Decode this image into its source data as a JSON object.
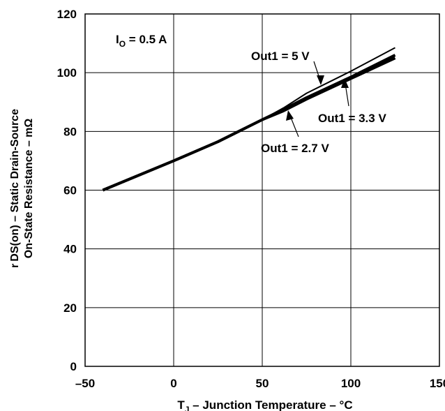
{
  "chart_data": {
    "type": "line",
    "title": "",
    "xlabel": {
      "prefix": "T",
      "sub": "J",
      "text": " – Junction Temperature – °C"
    },
    "ylabel": {
      "line1_prefix": "r",
      "line1_sub": "DS(on)",
      "line1_text": " – Static Drain-Source",
      "line2": "On-State Resistance –  mΩ"
    },
    "xlim": [
      -50,
      150
    ],
    "ylim": [
      0,
      120
    ],
    "xticks": [
      "–50",
      "0",
      "50",
      "100",
      "150"
    ],
    "yticks": [
      "0",
      "20",
      "40",
      "60",
      "80",
      "100",
      "120"
    ],
    "grid": true,
    "condition": {
      "prefix": "I",
      "sub": "O",
      "text": " = 0.5 A"
    },
    "series": [
      {
        "name": "Out1 = 5 V",
        "x": [
          -40,
          0,
          25,
          50,
          62,
          75,
          100,
          125
        ],
        "y": [
          60,
          70,
          76.5,
          84,
          88,
          93,
          100.5,
          108.5
        ]
      },
      {
        "name": "Out1 = 3.3 V",
        "x": [
          -40,
          0,
          25,
          50,
          62,
          75,
          100,
          125
        ],
        "y": [
          60,
          70,
          76.5,
          84,
          87.5,
          91.5,
          98.5,
          106
        ]
      },
      {
        "name": "Out1 = 2.7 V",
        "x": [
          -40,
          0,
          25,
          50,
          62,
          75,
          100,
          125
        ],
        "y": [
          60,
          70,
          76.5,
          84,
          87,
          91,
          98,
          105
        ]
      }
    ]
  }
}
